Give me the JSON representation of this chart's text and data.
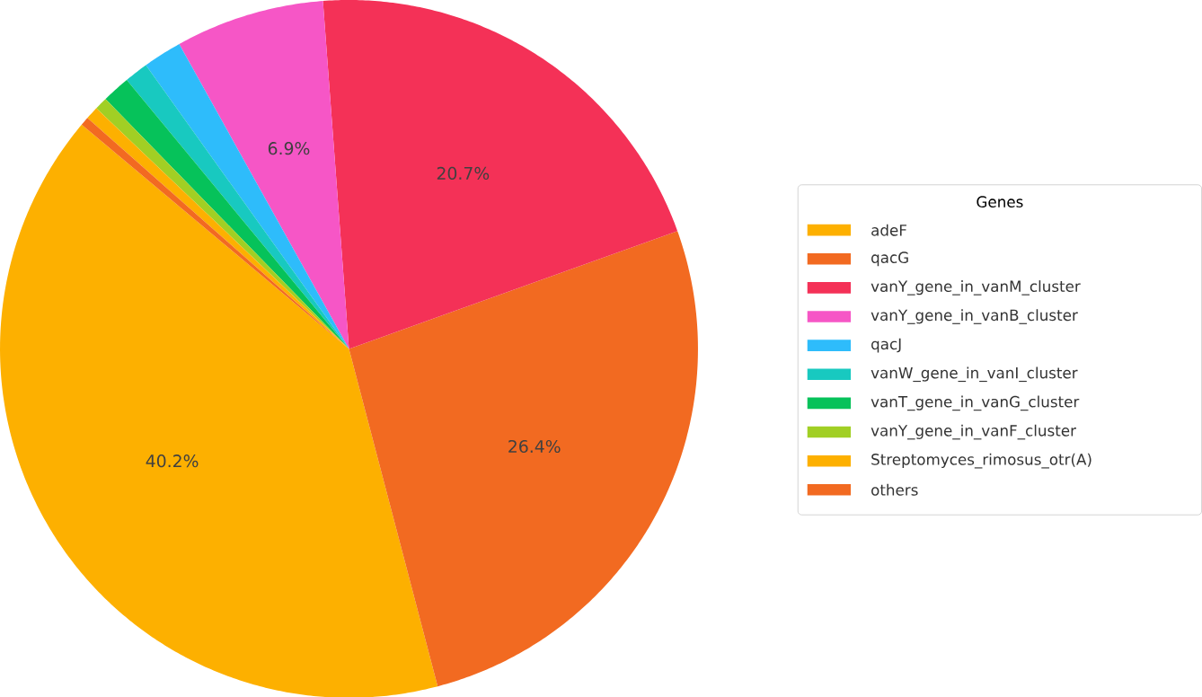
{
  "chart_data": {
    "type": "pie",
    "legend_title": "Genes",
    "legend": "right",
    "categories": [
      "adeF",
      "qacG",
      "vanY_gene_in_vanM_cluster",
      "vanY_gene_in_vanB_cluster",
      "qacJ",
      "vanW_gene_in_vanI_cluster",
      "vanT_gene_in_vanG_cluster",
      "vanY_gene_in_vanF_cluster",
      "Streptomyces_rimosus_otr(A)",
      "others"
    ],
    "values": [
      40.2,
      26.4,
      20.7,
      6.9,
      1.8,
      1.1,
      1.3,
      0.6,
      0.6,
      0.4
    ],
    "value_labels": [
      "40.2%",
      "26.4%",
      "20.7%",
      "6.9%",
      null,
      null,
      null,
      null,
      null,
      null
    ],
    "colors": [
      "#fdb000",
      "#f26a21",
      "#f43157",
      "#f656c6",
      "#2ebcfb",
      "#18c9c0",
      "#06c25a",
      "#a1cf24",
      "#fdb000",
      "#f26a21"
    ]
  }
}
